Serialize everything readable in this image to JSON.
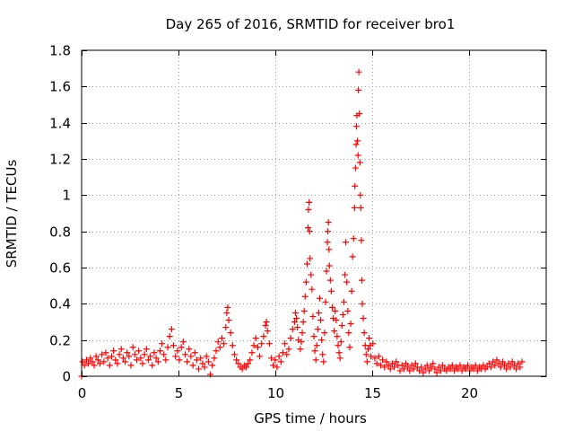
{
  "chart_data": {
    "type": "scatter",
    "title": "Day 265 of 2016, SRMTID for receiver bro1",
    "xlabel": "GPS time / hours",
    "ylabel": "SRMTID / TECUs",
    "xlim": [
      0,
      24
    ],
    "ylim": [
      0,
      1.8
    ],
    "xticks": [
      0,
      5,
      10,
      15,
      20
    ],
    "yticks": [
      0,
      0.2,
      0.4,
      0.6,
      0.8,
      1.0,
      1.2,
      1.4,
      1.6,
      1.8
    ],
    "xtick_labels": [
      "0",
      "5",
      "10",
      "15",
      "20"
    ],
    "ytick_labels": [
      "0",
      "0.2",
      "0.4",
      "0.6",
      "0.8",
      "1",
      "1.2",
      "1.4",
      "1.6",
      "1.8"
    ],
    "grid": true,
    "marker": "plus",
    "marker_color": "#ff0000",
    "series": [
      {
        "name": "bro1",
        "points": [
          [
            0.0,
            0.0
          ],
          [
            0.05,
            0.08
          ],
          [
            0.15,
            0.06
          ],
          [
            0.25,
            0.09
          ],
          [
            0.35,
            0.07
          ],
          [
            0.45,
            0.1
          ],
          [
            0.55,
            0.08
          ],
          [
            0.65,
            0.06
          ],
          [
            0.75,
            0.11
          ],
          [
            0.85,
            0.09
          ],
          [
            0.95,
            0.07
          ],
          [
            1.05,
            0.12
          ],
          [
            1.15,
            0.08
          ],
          [
            1.25,
            0.13
          ],
          [
            1.35,
            0.1
          ],
          [
            1.45,
            0.06
          ],
          [
            1.55,
            0.11
          ],
          [
            1.65,
            0.14
          ],
          [
            1.75,
            0.09
          ],
          [
            1.85,
            0.07
          ],
          [
            1.95,
            0.12
          ],
          [
            2.05,
            0.15
          ],
          [
            2.15,
            0.1
          ],
          [
            2.25,
            0.08
          ],
          [
            2.35,
            0.13
          ],
          [
            2.45,
            0.11
          ],
          [
            2.55,
            0.06
          ],
          [
            2.65,
            0.16
          ],
          [
            2.75,
            0.12
          ],
          [
            2.85,
            0.09
          ],
          [
            2.95,
            0.14
          ],
          [
            3.05,
            0.1
          ],
          [
            3.15,
            0.07
          ],
          [
            3.25,
            0.12
          ],
          [
            3.35,
            0.15
          ],
          [
            3.45,
            0.09
          ],
          [
            3.55,
            0.11
          ],
          [
            3.65,
            0.06
          ],
          [
            3.75,
            0.13
          ],
          [
            3.85,
            0.1
          ],
          [
            3.95,
            0.08
          ],
          [
            4.05,
            0.14
          ],
          [
            4.15,
            0.18
          ],
          [
            4.25,
            0.12
          ],
          [
            4.35,
            0.09
          ],
          [
            4.45,
            0.16
          ],
          [
            4.55,
            0.22
          ],
          [
            4.65,
            0.26
          ],
          [
            4.75,
            0.17
          ],
          [
            4.85,
            0.11
          ],
          [
            4.95,
            0.14
          ],
          [
            5.05,
            0.09
          ],
          [
            5.15,
            0.16
          ],
          [
            5.25,
            0.19
          ],
          [
            5.35,
            0.12
          ],
          [
            5.45,
            0.08
          ],
          [
            5.55,
            0.15
          ],
          [
            5.65,
            0.11
          ],
          [
            5.75,
            0.06
          ],
          [
            5.85,
            0.13
          ],
          [
            5.95,
            0.09
          ],
          [
            6.05,
            0.04
          ],
          [
            6.15,
            0.1
          ],
          [
            6.25,
            0.07
          ],
          [
            6.35,
            0.05
          ],
          [
            6.45,
            0.11
          ],
          [
            6.55,
            0.08
          ],
          [
            6.65,
            0.01
          ],
          [
            6.75,
            0.06
          ],
          [
            6.85,
            0.1
          ],
          [
            6.95,
            0.14
          ],
          [
            7.05,
            0.19
          ],
          [
            7.15,
            0.16
          ],
          [
            7.25,
            0.21
          ],
          [
            7.35,
            0.18
          ],
          [
            7.45,
            0.27
          ],
          [
            7.5,
            0.35
          ],
          [
            7.55,
            0.38
          ],
          [
            7.6,
            0.31
          ],
          [
            7.7,
            0.24
          ],
          [
            7.8,
            0.17
          ],
          [
            7.9,
            0.12
          ],
          [
            8.0,
            0.09
          ],
          [
            8.1,
            0.07
          ],
          [
            8.2,
            0.05
          ],
          [
            8.3,
            0.04
          ],
          [
            8.4,
            0.06
          ],
          [
            8.5,
            0.05
          ],
          [
            8.6,
            0.07
          ],
          [
            8.7,
            0.09
          ],
          [
            8.8,
            0.13
          ],
          [
            8.9,
            0.17
          ],
          [
            9.0,
            0.21
          ],
          [
            9.1,
            0.16
          ],
          [
            9.2,
            0.11
          ],
          [
            9.3,
            0.18
          ],
          [
            9.4,
            0.22
          ],
          [
            9.5,
            0.28
          ],
          [
            9.55,
            0.3
          ],
          [
            9.6,
            0.25
          ],
          [
            9.7,
            0.18
          ],
          [
            9.8,
            0.1
          ],
          [
            9.9,
            0.06
          ],
          [
            10.0,
            0.09
          ],
          [
            10.1,
            0.05
          ],
          [
            10.2,
            0.11
          ],
          [
            10.3,
            0.08
          ],
          [
            10.4,
            0.13
          ],
          [
            10.5,
            0.18
          ],
          [
            10.6,
            0.12
          ],
          [
            10.7,
            0.15
          ],
          [
            10.8,
            0.21
          ],
          [
            10.9,
            0.26
          ],
          [
            11.0,
            0.3
          ],
          [
            11.05,
            0.35
          ],
          [
            11.1,
            0.32
          ],
          [
            11.15,
            0.27
          ],
          [
            11.2,
            0.2
          ],
          [
            11.3,
            0.15
          ],
          [
            11.35,
            0.19
          ],
          [
            11.4,
            0.24
          ],
          [
            11.45,
            0.3
          ],
          [
            11.5,
            0.36
          ],
          [
            11.55,
            0.44
          ],
          [
            11.6,
            0.52
          ],
          [
            11.65,
            0.62
          ],
          [
            11.7,
            0.82
          ],
          [
            11.72,
            0.92
          ],
          [
            11.75,
            0.96
          ],
          [
            11.78,
            0.8
          ],
          [
            11.8,
            0.65
          ],
          [
            11.85,
            0.56
          ],
          [
            11.9,
            0.48
          ],
          [
            11.95,
            0.33
          ],
          [
            12.0,
            0.22
          ],
          [
            12.05,
            0.14
          ],
          [
            12.1,
            0.09
          ],
          [
            12.15,
            0.17
          ],
          [
            12.2,
            0.26
          ],
          [
            12.25,
            0.35
          ],
          [
            12.3,
            0.43
          ],
          [
            12.35,
            0.31
          ],
          [
            12.4,
            0.2
          ],
          [
            12.45,
            0.12
          ],
          [
            12.5,
            0.08
          ],
          [
            12.55,
            0.24
          ],
          [
            12.6,
            0.41
          ],
          [
            12.65,
            0.58
          ],
          [
            12.7,
            0.74
          ],
          [
            12.72,
            0.8
          ],
          [
            12.75,
            0.85
          ],
          [
            12.78,
            0.7
          ],
          [
            12.8,
            0.61
          ],
          [
            12.85,
            0.53
          ],
          [
            12.9,
            0.47
          ],
          [
            12.95,
            0.38
          ],
          [
            13.0,
            0.32
          ],
          [
            13.05,
            0.25
          ],
          [
            13.1,
            0.36
          ],
          [
            13.15,
            0.31
          ],
          [
            13.2,
            0.22
          ],
          [
            13.25,
            0.17
          ],
          [
            13.3,
            0.13
          ],
          [
            13.35,
            0.1
          ],
          [
            13.4,
            0.19
          ],
          [
            13.45,
            0.28
          ],
          [
            13.5,
            0.34
          ],
          [
            13.55,
            0.41
          ],
          [
            13.6,
            0.56
          ],
          [
            13.65,
            0.74
          ],
          [
            13.7,
            0.52
          ],
          [
            13.75,
            0.36
          ],
          [
            13.8,
            0.24
          ],
          [
            13.85,
            0.16
          ],
          [
            13.9,
            0.29
          ],
          [
            13.95,
            0.47
          ],
          [
            14.0,
            0.66
          ],
          [
            14.05,
            0.76
          ],
          [
            14.1,
            0.93
          ],
          [
            14.12,
            1.05
          ],
          [
            14.15,
            1.15
          ],
          [
            14.18,
            1.28
          ],
          [
            14.2,
            1.38
          ],
          [
            14.22,
            1.44
          ],
          [
            14.25,
            1.3
          ],
          [
            14.28,
            1.22
          ],
          [
            14.3,
            1.58
          ],
          [
            14.32,
            1.68
          ],
          [
            14.35,
            1.45
          ],
          [
            14.38,
            1.18
          ],
          [
            14.4,
            1.0
          ],
          [
            14.42,
            0.93
          ],
          [
            14.45,
            0.75
          ],
          [
            14.48,
            0.53
          ],
          [
            14.5,
            0.4
          ],
          [
            14.55,
            0.32
          ],
          [
            14.6,
            0.24
          ],
          [
            14.65,
            0.17
          ],
          [
            14.7,
            0.12
          ],
          [
            14.75,
            0.08
          ],
          [
            14.8,
            0.15
          ],
          [
            14.85,
            0.21
          ],
          [
            14.9,
            0.17
          ],
          [
            14.95,
            0.11
          ],
          [
            15.05,
            0.18
          ],
          [
            15.15,
            0.1
          ],
          [
            15.25,
            0.07
          ],
          [
            15.35,
            0.11
          ],
          [
            15.45,
            0.06
          ],
          [
            15.55,
            0.09
          ],
          [
            15.65,
            0.05
          ],
          [
            15.75,
            0.08
          ],
          [
            15.85,
            0.06
          ],
          [
            15.95,
            0.04
          ],
          [
            16.05,
            0.07
          ],
          [
            16.15,
            0.05
          ],
          [
            16.25,
            0.08
          ],
          [
            16.35,
            0.06
          ],
          [
            16.45,
            0.03
          ],
          [
            16.55,
            0.06
          ],
          [
            16.65,
            0.04
          ],
          [
            16.75,
            0.07
          ],
          [
            16.85,
            0.05
          ],
          [
            16.95,
            0.03
          ],
          [
            17.05,
            0.06
          ],
          [
            17.15,
            0.04
          ],
          [
            17.25,
            0.07
          ],
          [
            17.35,
            0.05
          ],
          [
            17.45,
            0.03
          ],
          [
            17.55,
            0.05
          ],
          [
            17.65,
            0.02
          ],
          [
            17.75,
            0.04
          ],
          [
            17.85,
            0.06
          ],
          [
            17.95,
            0.03
          ],
          [
            18.05,
            0.05
          ],
          [
            18.15,
            0.07
          ],
          [
            18.25,
            0.04
          ],
          [
            18.35,
            0.02
          ],
          [
            18.45,
            0.05
          ],
          [
            18.55,
            0.03
          ],
          [
            18.65,
            0.06
          ],
          [
            18.75,
            0.04
          ],
          [
            18.85,
            0.03
          ],
          [
            18.95,
            0.05
          ],
          [
            19.05,
            0.04
          ],
          [
            19.15,
            0.06
          ],
          [
            19.25,
            0.03
          ],
          [
            19.35,
            0.05
          ],
          [
            19.45,
            0.04
          ],
          [
            19.55,
            0.06
          ],
          [
            19.65,
            0.03
          ],
          [
            19.75,
            0.05
          ],
          [
            19.85,
            0.04
          ],
          [
            19.95,
            0.06
          ],
          [
            20.05,
            0.03
          ],
          [
            20.15,
            0.05
          ],
          [
            20.25,
            0.04
          ],
          [
            20.35,
            0.06
          ],
          [
            20.45,
            0.03
          ],
          [
            20.55,
            0.05
          ],
          [
            20.65,
            0.04
          ],
          [
            20.75,
            0.06
          ],
          [
            20.85,
            0.04
          ],
          [
            20.95,
            0.05
          ],
          [
            21.05,
            0.07
          ],
          [
            21.15,
            0.05
          ],
          [
            21.25,
            0.08
          ],
          [
            21.35,
            0.06
          ],
          [
            21.45,
            0.09
          ],
          [
            21.55,
            0.07
          ],
          [
            21.65,
            0.05
          ],
          [
            21.75,
            0.08
          ],
          [
            21.85,
            0.06
          ],
          [
            21.95,
            0.04
          ],
          [
            22.05,
            0.07
          ],
          [
            22.15,
            0.05
          ],
          [
            22.25,
            0.08
          ],
          [
            22.35,
            0.06
          ],
          [
            22.45,
            0.04
          ],
          [
            22.55,
            0.07
          ],
          [
            22.65,
            0.05
          ],
          [
            22.75,
            0.08
          ]
        ]
      }
    ]
  }
}
